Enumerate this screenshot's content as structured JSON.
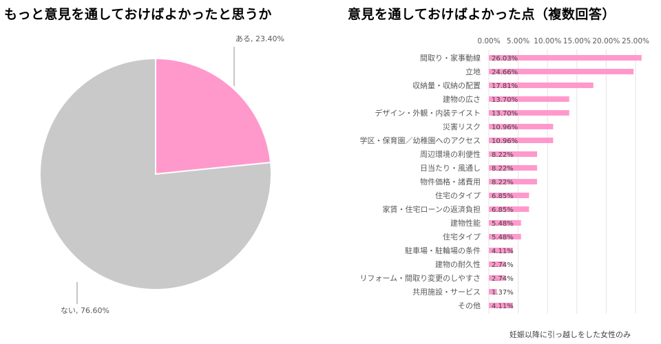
{
  "colors": {
    "pink": "#ff99cc",
    "gray": "#c9c9c9",
    "grid": "#e3e3e3",
    "text": "#595959"
  },
  "chart_data": [
    {
      "type": "pie",
      "title": "もっと意見を通しておけばよかったと思うか",
      "slices": [
        {
          "label": "ある",
          "value": 23.4,
          "display": "ある, 23.40%",
          "color": "#ff99cc"
        },
        {
          "label": "ない",
          "value": 76.6,
          "display": "ない, 76.60%",
          "color": "#c9c9c9"
        }
      ]
    },
    {
      "type": "bar",
      "orientation": "horizontal",
      "title": "意見を通しておけばよかった点（複数回答）",
      "xlim": [
        0,
        25
      ],
      "ticks": [
        "0.00%",
        "5.00%",
        "10.00%",
        "15.00%",
        "20.00%",
        "25.00%"
      ],
      "tick_values": [
        0,
        5,
        10,
        15,
        20,
        25
      ],
      "grid": true,
      "categories": [
        "間取り・家事動線",
        "立地",
        "収納量・収納の配置",
        "建物の広さ",
        "デザイン・外観・内装テイスト",
        "災害リスク",
        "学区・保育園／幼稚園へのアクセス",
        "周辺環境の利便性",
        "日当たり・風通し",
        "物件価格・諸費用",
        "住宅のタイプ",
        "家賃・住宅ローンの返済負担",
        "建物性能",
        "住宅タイプ",
        "駐車場・駐輪場の条件",
        "建物の耐久性",
        "リフォーム・間取り変更のしやすさ",
        "共用施設・サービス",
        "その他"
      ],
      "values": [
        26.03,
        24.66,
        17.81,
        13.7,
        13.7,
        10.96,
        10.96,
        8.22,
        8.22,
        8.22,
        6.85,
        6.85,
        5.48,
        5.48,
        4.11,
        2.74,
        2.74,
        1.37,
        4.11
      ],
      "labels": [
        "26.03%",
        "24.66%",
        "17.81%",
        "13.70%",
        "13.70%",
        "10.96%",
        "10.96%",
        "8.22%",
        "8.22%",
        "8.22%",
        "6.85%",
        "6.85%",
        "5.48%",
        "5.48%",
        "4.11%",
        "2.74%",
        "2.74%",
        "1.37%",
        "4.11%"
      ],
      "color": "#ff99cc"
    }
  ],
  "footnote": "妊娠以降に引っ越しをした女性のみ"
}
